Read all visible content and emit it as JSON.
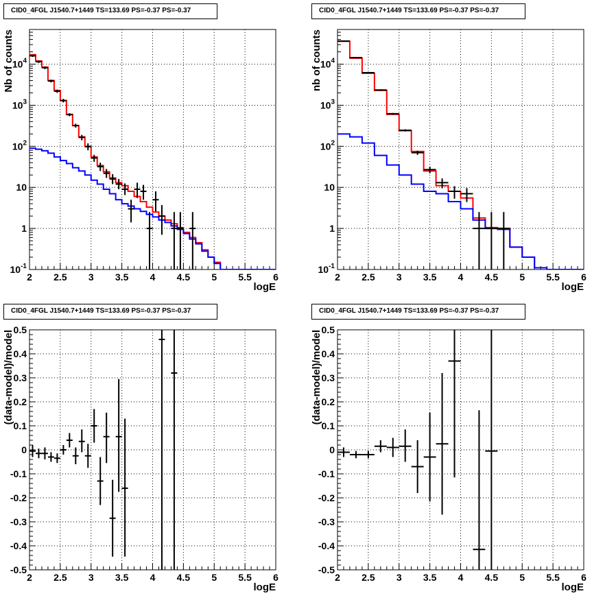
{
  "chart_data": [
    {
      "type": "line",
      "title": "CID0_4FGL J1540.7+1449 TS=133.69 PS=-0.37 PS=-0.37",
      "xlabel": "logE",
      "ylabel": "Nb of counts",
      "xlim": [
        2,
        6
      ],
      "ylim": [
        0.1,
        70000
      ],
      "yscale": "log",
      "x_ticks": [
        "2",
        "2.5",
        "3",
        "3.5",
        "4",
        "4.5",
        "5",
        "5.5",
        "6"
      ],
      "y_ticks": [
        "10^-1",
        "1",
        "10",
        "10^2",
        "10^3",
        "10^4"
      ],
      "grid": true,
      "series": [
        {
          "color": "#ff0000",
          "kind": "step",
          "bins": [
            2.0,
            2.1,
            2.2,
            2.3,
            2.4,
            2.5,
            2.6,
            2.7,
            2.8,
            2.9,
            3.0,
            3.1,
            3.2,
            3.3,
            3.4,
            3.5,
            3.6,
            3.7,
            3.8,
            3.9,
            4.0,
            4.1,
            4.2,
            4.3,
            4.4,
            4.5,
            4.6,
            4.7,
            4.8,
            4.9,
            5.0,
            5.1,
            5.2,
            5.3,
            5.4,
            5.5,
            5.6,
            5.7,
            5.8,
            5.9,
            6.0
          ],
          "values": [
            17000,
            12000,
            8500,
            4000,
            2300,
            1300,
            600,
            320,
            170,
            100,
            55,
            34,
            24,
            17,
            13,
            11,
            8,
            6,
            4.5,
            3.3,
            2.5,
            2,
            1.6,
            1.3,
            1.05,
            0.8,
            0.6,
            0.45,
            0.3,
            0.2,
            0.15,
            0.1,
            0.1,
            0.1,
            0.1,
            0.1,
            0.1,
            0.1,
            0.1,
            0.1
          ]
        },
        {
          "color": "#0000ff",
          "kind": "step",
          "bins": [
            2.0,
            2.1,
            2.2,
            2.3,
            2.4,
            2.5,
            2.6,
            2.7,
            2.8,
            2.9,
            3.0,
            3.1,
            3.2,
            3.3,
            3.4,
            3.5,
            3.6,
            3.7,
            3.8,
            3.9,
            4.0,
            4.1,
            4.2,
            4.3,
            4.4,
            4.5,
            4.6,
            4.7,
            4.8,
            4.9,
            5.0,
            5.1,
            5.2,
            5.3,
            5.4,
            5.5,
            5.6,
            5.7,
            5.8,
            5.9,
            6.0
          ],
          "values": [
            90,
            85,
            78,
            68,
            55,
            45,
            38,
            30,
            25,
            20,
            15,
            12,
            9,
            7,
            5,
            4,
            3.5,
            3,
            2.6,
            2.2,
            1.9,
            1.6,
            1.4,
            1.15,
            0.95,
            0.75,
            0.55,
            0.42,
            0.28,
            0.2,
            0.14,
            0.1,
            0.1,
            0.1,
            0.1,
            0.1,
            0.1,
            0.1,
            0.1,
            0.1
          ]
        },
        {
          "color": "#000000",
          "kind": "points",
          "x": [
            2.05,
            2.15,
            2.25,
            2.35,
            2.45,
            2.55,
            2.65,
            2.75,
            2.85,
            2.95,
            3.05,
            3.15,
            3.25,
            3.35,
            3.45,
            3.55,
            3.65,
            3.75,
            3.85,
            3.95,
            4.05,
            4.15,
            4.35,
            4.45,
            4.65
          ],
          "y": [
            16000,
            11500,
            8200,
            3900,
            2200,
            1300,
            590,
            320,
            165,
            98,
            52,
            32,
            22,
            16,
            12,
            9,
            3,
            9,
            8,
            1,
            5,
            2,
            1,
            1,
            1
          ],
          "ylo": [
            15000,
            10700,
            7600,
            3600,
            2000,
            1170,
            540,
            285,
            140,
            80,
            42,
            25,
            17,
            12,
            9,
            6.5,
            1.4,
            5.5,
            5,
            0.1,
            2.6,
            0.7,
            0.1,
            0.1,
            0.1
          ],
          "yhi": [
            17000,
            12300,
            8800,
            4200,
            2400,
            1430,
            640,
            355,
            190,
            118,
            62,
            40,
            28,
            21,
            16,
            12.5,
            5,
            13,
            11.5,
            2.5,
            8,
            3.7,
            2.5,
            2.5,
            2.5
          ]
        }
      ]
    },
    {
      "type": "line",
      "title": "CID0_4FGL J1540.7+1449 TS=133.69 PS=-0.37 PS=-0.37",
      "xlabel": "logE",
      "ylabel": "nb of counts",
      "xlim": [
        2,
        6
      ],
      "ylim": [
        0.1,
        70000
      ],
      "yscale": "log",
      "x_ticks": [
        "2",
        "2.5",
        "3",
        "3.5",
        "4",
        "4.5",
        "5",
        "5.5",
        "6"
      ],
      "y_ticks": [
        "10^-1",
        "1",
        "10",
        "10^2",
        "10^3",
        "10^4"
      ],
      "grid": true,
      "series": [
        {
          "color": "#ff0000",
          "kind": "step",
          "bins": [
            2.0,
            2.2,
            2.4,
            2.6,
            2.8,
            3.0,
            3.2,
            3.4,
            3.6,
            3.8,
            4.0,
            4.2,
            4.4,
            4.6,
            4.8,
            5.0,
            5.2,
            5.4,
            5.6,
            5.8,
            6.0
          ],
          "values": [
            36000,
            14000,
            6000,
            2300,
            600,
            240,
            75,
            25,
            11,
            8,
            5.5,
            1.8,
            1.05,
            1,
            0.35,
            0.2,
            0.11,
            0.1,
            0.1,
            0.1
          ]
        },
        {
          "color": "#0000ff",
          "kind": "step",
          "bins": [
            2.0,
            2.2,
            2.4,
            2.6,
            2.8,
            3.0,
            3.2,
            3.4,
            3.6,
            3.8,
            4.0,
            4.2,
            4.4,
            4.6,
            4.8,
            5.0,
            5.2,
            5.4,
            5.6,
            5.8,
            6.0
          ],
          "values": [
            200,
            170,
            120,
            60,
            35,
            20,
            12,
            8,
            7,
            4.5,
            3,
            1.6,
            1,
            0.95,
            0.35,
            0.2,
            0.11,
            0.1,
            0.1,
            0.1
          ]
        },
        {
          "color": "#000000",
          "kind": "points",
          "x": [
            2.1,
            2.3,
            2.5,
            2.7,
            2.9,
            3.1,
            3.3,
            3.5,
            3.7,
            3.9,
            4.1,
            4.3,
            4.5,
            4.7
          ],
          "y": [
            36500,
            14500,
            6200,
            2350,
            620,
            245,
            70,
            27,
            13,
            8,
            7,
            1,
            1,
            1
          ],
          "ylo": [
            35500,
            14000,
            6000,
            2250,
            590,
            230,
            62,
            22,
            9.5,
            5.3,
            4.4,
            0.1,
            0.1,
            0.1
          ],
          "yhi": [
            37500,
            15000,
            6400,
            2450,
            650,
            260,
            78,
            32,
            16.5,
            10.7,
            9.6,
            2.5,
            2.5,
            2.5
          ]
        }
      ]
    },
    {
      "type": "scatter",
      "title": "CID0_4FGL J1540.7+1449 TS=133.69 PS=-0.37 PS=-0.37",
      "xlabel": "logE",
      "ylabel": "(data-model)/model",
      "xlim": [
        2,
        6
      ],
      "ylim": [
        -0.5,
        0.5
      ],
      "x_ticks": [
        "2",
        "2.5",
        "3",
        "3.5",
        "4",
        "4.5",
        "5",
        "5.5",
        "6"
      ],
      "y_ticks": [
        "-0.5",
        "-0.4",
        "-0.3",
        "-0.2",
        "-0.1",
        "0",
        "0.1",
        "0.2",
        "0.3",
        "0.4",
        "0.5"
      ],
      "grid": true,
      "points": {
        "x": [
          2.05,
          2.15,
          2.25,
          2.35,
          2.45,
          2.55,
          2.65,
          2.75,
          2.85,
          2.95,
          3.05,
          3.15,
          3.25,
          3.35,
          3.45,
          3.55,
          4.15,
          4.35
        ],
        "xerr": 0.05,
        "y": [
          -0.005,
          -0.015,
          -0.015,
          -0.03,
          -0.035,
          0.0,
          0.04,
          -0.025,
          0.035,
          -0.025,
          0.1,
          -0.13,
          0.055,
          -0.285,
          0.055,
          -0.16,
          0.46,
          0.32
        ],
        "ylo": [
          -0.03,
          -0.035,
          -0.04,
          -0.05,
          -0.055,
          -0.02,
          0.01,
          -0.06,
          -0.01,
          -0.075,
          0.03,
          -0.23,
          -0.055,
          -0.445,
          -0.175,
          -0.445,
          -0.5,
          -0.5
        ],
        "yhi": [
          0.02,
          0.005,
          0.01,
          -0.01,
          -0.015,
          0.02,
          0.07,
          0.01,
          0.085,
          0.025,
          0.17,
          -0.03,
          0.155,
          -0.125,
          0.295,
          0.13,
          0.5,
          0.5
        ]
      }
    },
    {
      "type": "scatter",
      "title": "CID0_4FGL J1540.7+1449 TS=133.69 PS=-0.37 PS=-0.37",
      "xlabel": "logE",
      "ylabel": "(data-model)/model",
      "xlim": [
        2,
        6
      ],
      "ylim": [
        -0.5,
        0.5
      ],
      "x_ticks": [
        "2",
        "2.5",
        "3",
        "3.5",
        "4",
        "4.5",
        "5",
        "5.5",
        "6"
      ],
      "y_ticks": [
        "-0.5",
        "-0.4",
        "-0.3",
        "-0.2",
        "-0.1",
        "0",
        "0.1",
        "0.2",
        "0.3",
        "0.4",
        "0.5"
      ],
      "grid": true,
      "points": {
        "x": [
          2.1,
          2.3,
          2.5,
          2.7,
          2.9,
          3.1,
          3.3,
          3.5,
          3.7,
          3.9,
          4.3,
          4.5
        ],
        "xerr": 0.1,
        "y": [
          -0.01,
          -0.02,
          -0.02,
          0.015,
          0.01,
          0.015,
          -0.07,
          -0.03,
          0.025,
          0.37,
          -0.415,
          -0.005
        ],
        "ylo": [
          -0.03,
          -0.035,
          -0.035,
          -0.01,
          -0.03,
          -0.05,
          -0.18,
          -0.215,
          -0.27,
          -0.115,
          -0.5,
          -0.5
        ],
        "yhi": [
          0.01,
          -0.005,
          -0.005,
          0.04,
          0.05,
          0.085,
          0.04,
          0.155,
          0.32,
          0.5,
          0.165,
          0.5
        ]
      }
    }
  ]
}
